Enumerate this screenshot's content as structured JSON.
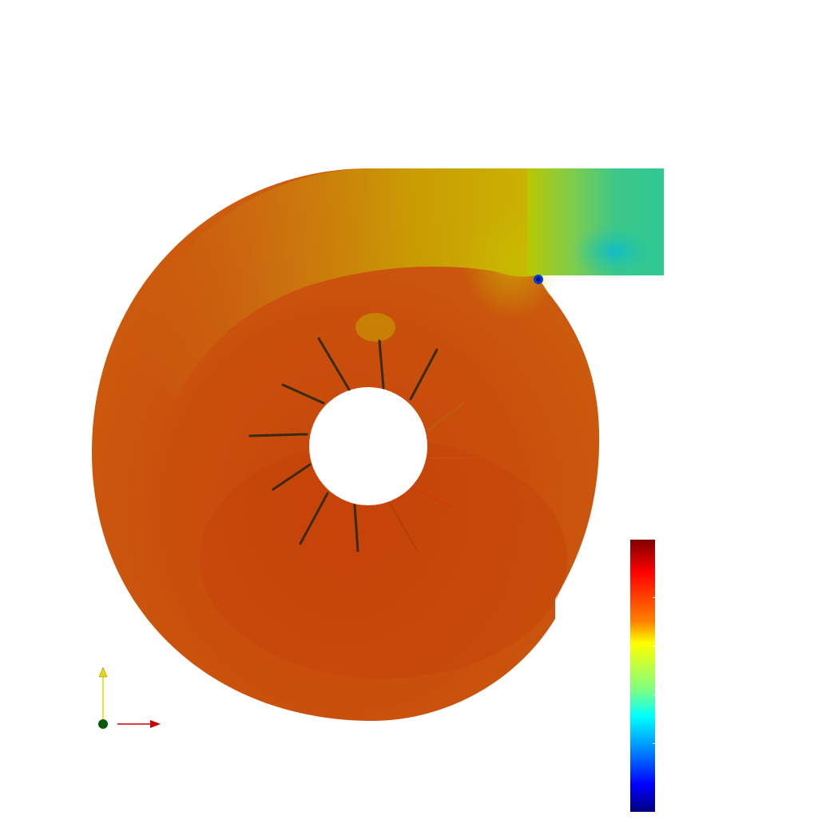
{
  "scene": {
    "background": "#ffffff",
    "field_colors": {
      "dominant": "#c8450a",
      "scroll_upper": "#cf6a10",
      "tongue_yellow": "#c9c200",
      "outlet_teal": "#2ec890",
      "outlet_cyan": "#10c0c8",
      "tongue_spot": "#0044cc",
      "blade": "#3a2a10"
    },
    "blade_count": 12
  },
  "colorbar": {
    "colormap": "jet",
    "colors": [
      "#7f0000",
      "#ff0000",
      "#ff8000",
      "#ffff00",
      "#80ff80",
      "#00ffff",
      "#0080ff",
      "#0000ff",
      "#00007f"
    ]
  },
  "axes_triad": {
    "y_color": "#e8d800",
    "x_color": "#cc0000",
    "origin_color": "#0a5a0a"
  }
}
